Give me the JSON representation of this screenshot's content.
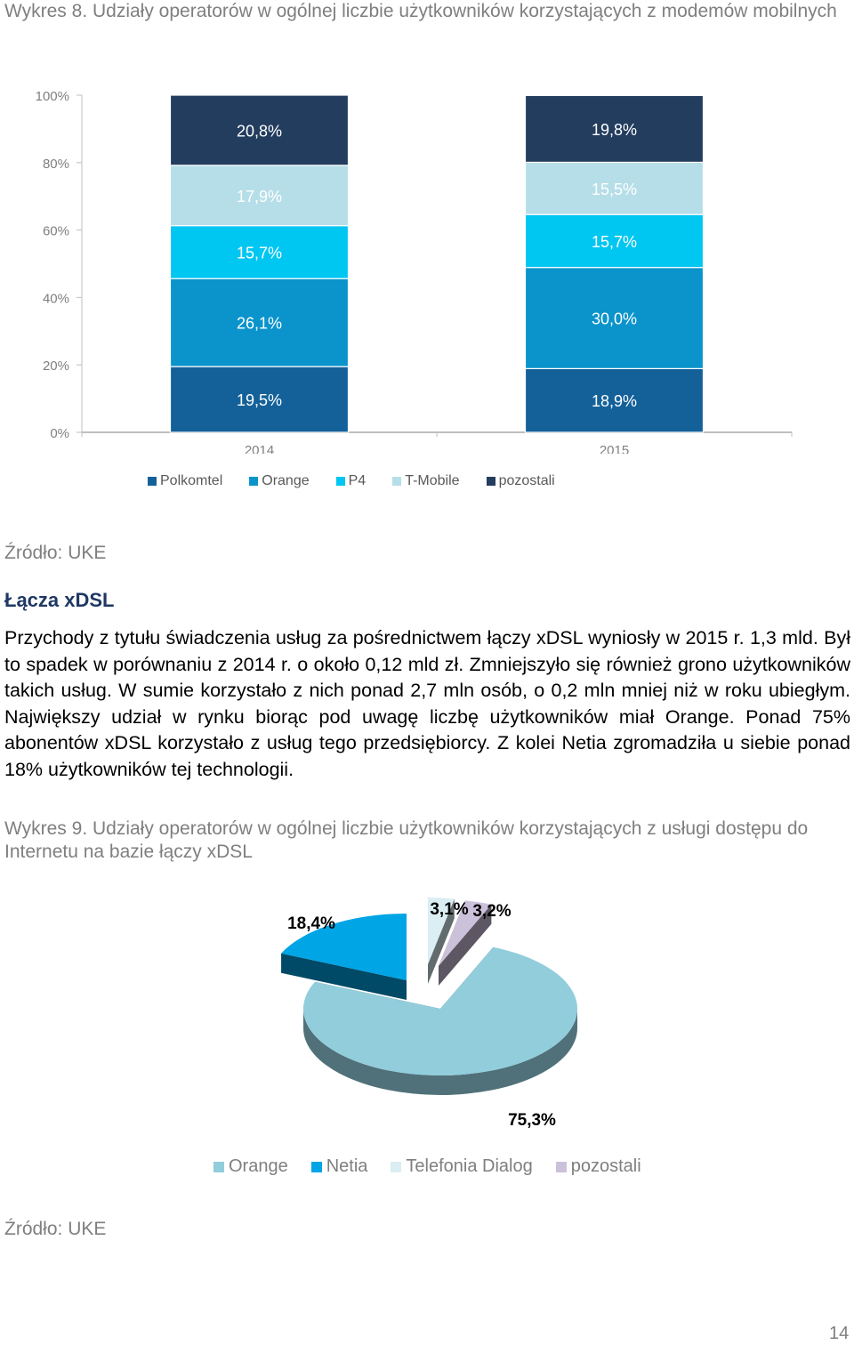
{
  "chart1_caption": "Wykres 8. Udziały operatorów w ogólnej liczbie użytkowników korzystających z modemów mobilnych",
  "source1": "Źródło: UKE",
  "section_heading": "Łącza xDSL",
  "paragraph": "Przychody z tytułu świadczenia usług za pośrednictwem łączy xDSL wyniosły w 2015 r. 1,3 mld. Był to spadek w porównaniu z 2014 r. o około 0,12 mld zł. Zmniejszyło się również grono użytkowników takich usług. W sumie korzystało z nich ponad 2,7 mln osób, o 0,2 mln mniej niż w roku ubiegłym. Największy udział w rynku biorąc pod uwagę liczbę użytkowników miał Orange. Ponad 75% abonentów xDSL korzystało z usług tego przedsiębiorcy. Z kolei Netia zgromadziła u siebie ponad 18% użytkowników tej technologii.",
  "chart2_caption": "Wykres 9. Udziały operatorów w ogólnej liczbie użytkowników korzystających z usługi dostępu do Internetu na bazie łączy xDSL",
  "source2": "Źródło: UKE",
  "page_number": "14",
  "chart_data": [
    {
      "type": "bar",
      "stacked": true,
      "categories": [
        "2014",
        "2015"
      ],
      "yticks": [
        "0%",
        "20%",
        "40%",
        "60%",
        "80%",
        "100%"
      ],
      "ylim": [
        0,
        100
      ],
      "legend_position": "bottom",
      "series": [
        {
          "name": "Polkomtel",
          "values": [
            19.5,
            18.9
          ],
          "labels": [
            "19,5%",
            "18,9%"
          ],
          "color": "#14619a"
        },
        {
          "name": "Orange",
          "values": [
            26.1,
            30.0
          ],
          "labels": [
            "26,1%",
            "30,0%"
          ],
          "color": "#0a94cb"
        },
        {
          "name": "P4",
          "values": [
            15.7,
            15.7
          ],
          "labels": [
            "15,7%",
            "15,7%"
          ],
          "color": "#00c6f2"
        },
        {
          "name": "T-Mobile",
          "values": [
            17.9,
            15.5
          ],
          "labels": [
            "17,9%",
            "15,5%"
          ],
          "color": "#b6dee8"
        },
        {
          "name": "pozostali",
          "values": [
            20.8,
            19.8
          ],
          "labels": [
            "20,8%",
            "19,8%"
          ],
          "color": "#233d5e"
        }
      ]
    },
    {
      "type": "pie",
      "three_d": true,
      "legend_position": "bottom",
      "slices": [
        {
          "name": "Orange",
          "value": 75.3,
          "label": "75,3%",
          "color": "#92cddc"
        },
        {
          "name": "Netia",
          "value": 18.4,
          "label": "18,4%",
          "color": "#00a5e5"
        },
        {
          "name": "Telefonia Dialog",
          "value": 3.1,
          "label": "3,1%",
          "color": "#daeef3"
        },
        {
          "name": "pozostali",
          "value": 3.2,
          "label": "3,2%",
          "color": "#ccc1da"
        }
      ]
    }
  ]
}
